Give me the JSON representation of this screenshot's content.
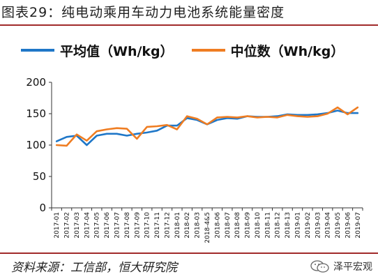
{
  "header": {
    "title": "图表29：纯电动乘用车动力电池系统能量密度"
  },
  "footer": {
    "source": "资料来源：工信部，恒大研究院",
    "brand": "泽平宏观",
    "brand_icon": "wechat-icon"
  },
  "colors": {
    "accent_rule": "#a12a2a",
    "series_avg": "#1f77c8",
    "series_median": "#ef7d22",
    "axis": "#333333"
  },
  "chart_data": {
    "type": "line",
    "title": "",
    "xlabel": "",
    "ylabel": "",
    "ylim": [
      0,
      200
    ],
    "yticks": [
      0,
      50,
      100,
      150,
      200
    ],
    "grid": false,
    "legend_position": "top",
    "categories": [
      "2017-01",
      "2017-02",
      "2017-03",
      "2017-04",
      "2017-05",
      "2017-06",
      "2017-07",
      "2017-08",
      "2017-09",
      "2017-10",
      "2017-11",
      "2017-12",
      "2018-01",
      "2018-02",
      "2018-03",
      "2018-4&5",
      "2018-06",
      "2018-07",
      "2018-08",
      "2018-09",
      "2018-10",
      "2018-11",
      "2018-12",
      "2018-13",
      "2019-01",
      "2019-02",
      "2019-03",
      "2019-04",
      "2019-05",
      "2019-06",
      "2019-07"
    ],
    "series": [
      {
        "name": "平均值（Wh/kg）",
        "color": "#1f77c8",
        "values": [
          106,
          113,
          115,
          100,
          115,
          118,
          118,
          115,
          118,
          120,
          123,
          131,
          131,
          143,
          140,
          133,
          140,
          143,
          142,
          146,
          145,
          145,
          146,
          149,
          148,
          148,
          149,
          151,
          155,
          151,
          151
        ]
      },
      {
        "name": "中位数（Wh/kg）",
        "color": "#ef7d22",
        "values": [
          100,
          99,
          117,
          107,
          122,
          125,
          127,
          126,
          110,
          129,
          130,
          132,
          125,
          146,
          142,
          133,
          144,
          145,
          144,
          146,
          144,
          145,
          144,
          148,
          146,
          145,
          146,
          150,
          160,
          149,
          160
        ]
      }
    ]
  }
}
